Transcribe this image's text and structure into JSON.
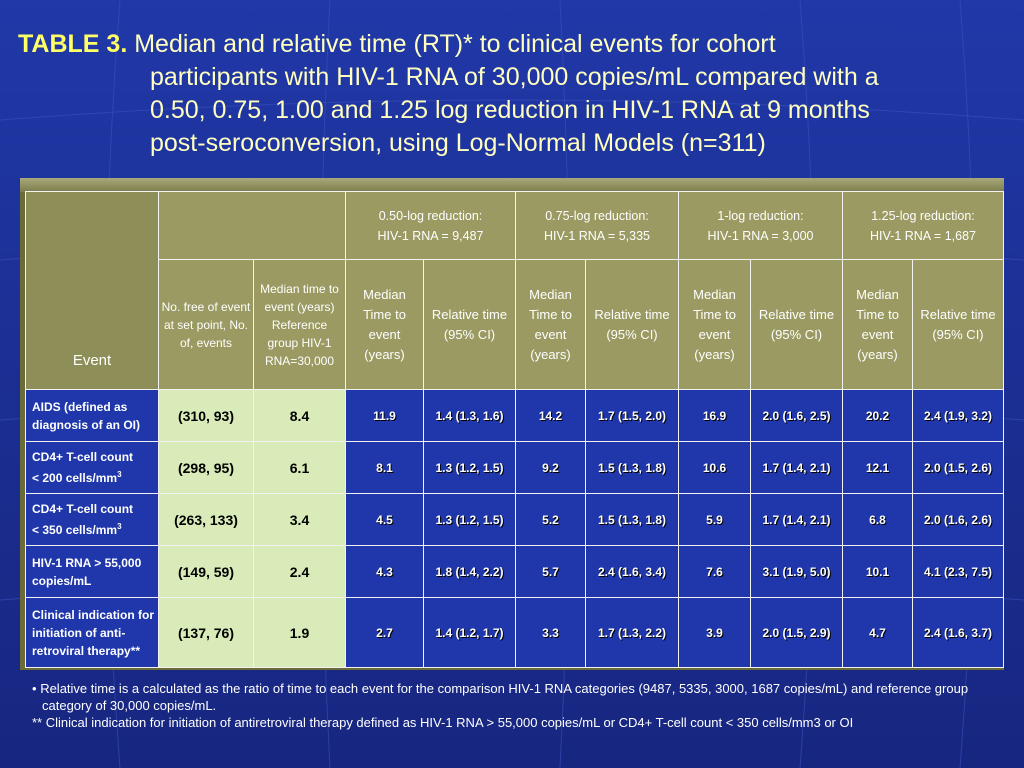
{
  "title": {
    "label": "TABLE 3.",
    "line1": "Median and relative time (RT)* to clinical events for cohort",
    "line2": "participants with HIV-1 RNA of 30,000 copies/mL compared with a",
    "line3": "0.50, 0.75, 1.00 and 1.25 log reduction in HIV-1 RNA at 9 months",
    "line4": "post-seroconversion, using Log-Normal Models (n=311)"
  },
  "table": {
    "event_header": "Event",
    "groups": [
      {
        "line1": "0.50-log reduction:",
        "line2": "HIV-1 RNA = 9,487"
      },
      {
        "line1": "0.75-log reduction:",
        "line2": "HIV-1 RNA = 5,335"
      },
      {
        "line1": "1-log reduction:",
        "line2": "HIV-1 RNA = 3,000"
      },
      {
        "line1": "1.25-log reduction:",
        "line2": "HIV-1 RNA = 1,687"
      }
    ],
    "col_no_free": "No. free of event at set point, No. of, events",
    "col_median_ref": "Median time to event (years) Reference group HIV-1 RNA=30,000",
    "col_median": "Median Time to event (years)",
    "col_relative": "Relative time (95% CI)",
    "rows": [
      {
        "event": "AIDS (defined as diagnosis of an OI)",
        "nfree": "(310, 93)",
        "ref": "8.4",
        "cells": [
          "11.9",
          "1.4 (1.3, 1.6)",
          "14.2",
          "1.7 (1.5, 2.0)",
          "16.9",
          "2.0 (1.6, 2.5)",
          "20.2",
          "2.4 (1.9, 3.2)"
        ]
      },
      {
        "event": "CD4+ T-cell count",
        "event2": "< 200 cells/mm",
        "sup": "3",
        "nfree": "(298, 95)",
        "ref": "6.1",
        "cells": [
          "8.1",
          "1.3 (1.2, 1.5)",
          "9.2",
          "1.5 (1.3, 1.8)",
          "10.6",
          "1.7 (1.4, 2.1)",
          "12.1",
          "2.0 (1.5, 2.6)"
        ]
      },
      {
        "event": "CD4+ T-cell count",
        "event2": "< 350 cells/mm",
        "sup": "3",
        "nfree": "(263, 133)",
        "ref": "3.4",
        "cells": [
          "4.5",
          "1.3 (1.2, 1.5)",
          "5.2",
          "1.5 (1.3, 1.8)",
          "5.9",
          "1.7 (1.4, 2.1)",
          "6.8",
          "2.0 (1.6, 2.6)"
        ]
      },
      {
        "event": "HIV-1 RNA > 55,000 copies/mL",
        "nfree": "(149, 59)",
        "ref": "2.4",
        "cells": [
          "4.3",
          "1.8 (1.4, 2.2)",
          "5.7",
          "2.4 (1.6, 3.4)",
          "7.6",
          "3.1 (1.9, 5.0)",
          "10.1",
          "4.1 (2.3, 7.5)"
        ]
      },
      {
        "event": "Clinical indication for initiation of anti-retroviral therapy**",
        "nfree": "(137, 76)",
        "ref": "1.9",
        "cells": [
          "2.7",
          "1.4 (1.2, 1.7)",
          "3.3",
          "1.7 (1.3, 2.2)",
          "3.9",
          "2.0 (1.5, 2.9)",
          "4.7",
          "2.4 (1.6, 3.7)"
        ]
      }
    ]
  },
  "notes": {
    "bullet": "•",
    "note1": "Relative time is a calculated as the ratio of time to each event for the comparison HIV-1 RNA categories (9487, 5335, 3000, 1687 copies/mL) and reference group category of 30,000 copies/mL.",
    "note2": "** Clinical indication for initiation of antiretroviral therapy defined as HIV-1 RNA > 55,000 copies/mL or CD4+ T-cell count < 350 cells/mm3 or OI"
  },
  "colors": {
    "background": "#1f37aa",
    "header": "#9a9a62",
    "highlight": "#d8ebb8",
    "title": "#ffffc0"
  }
}
